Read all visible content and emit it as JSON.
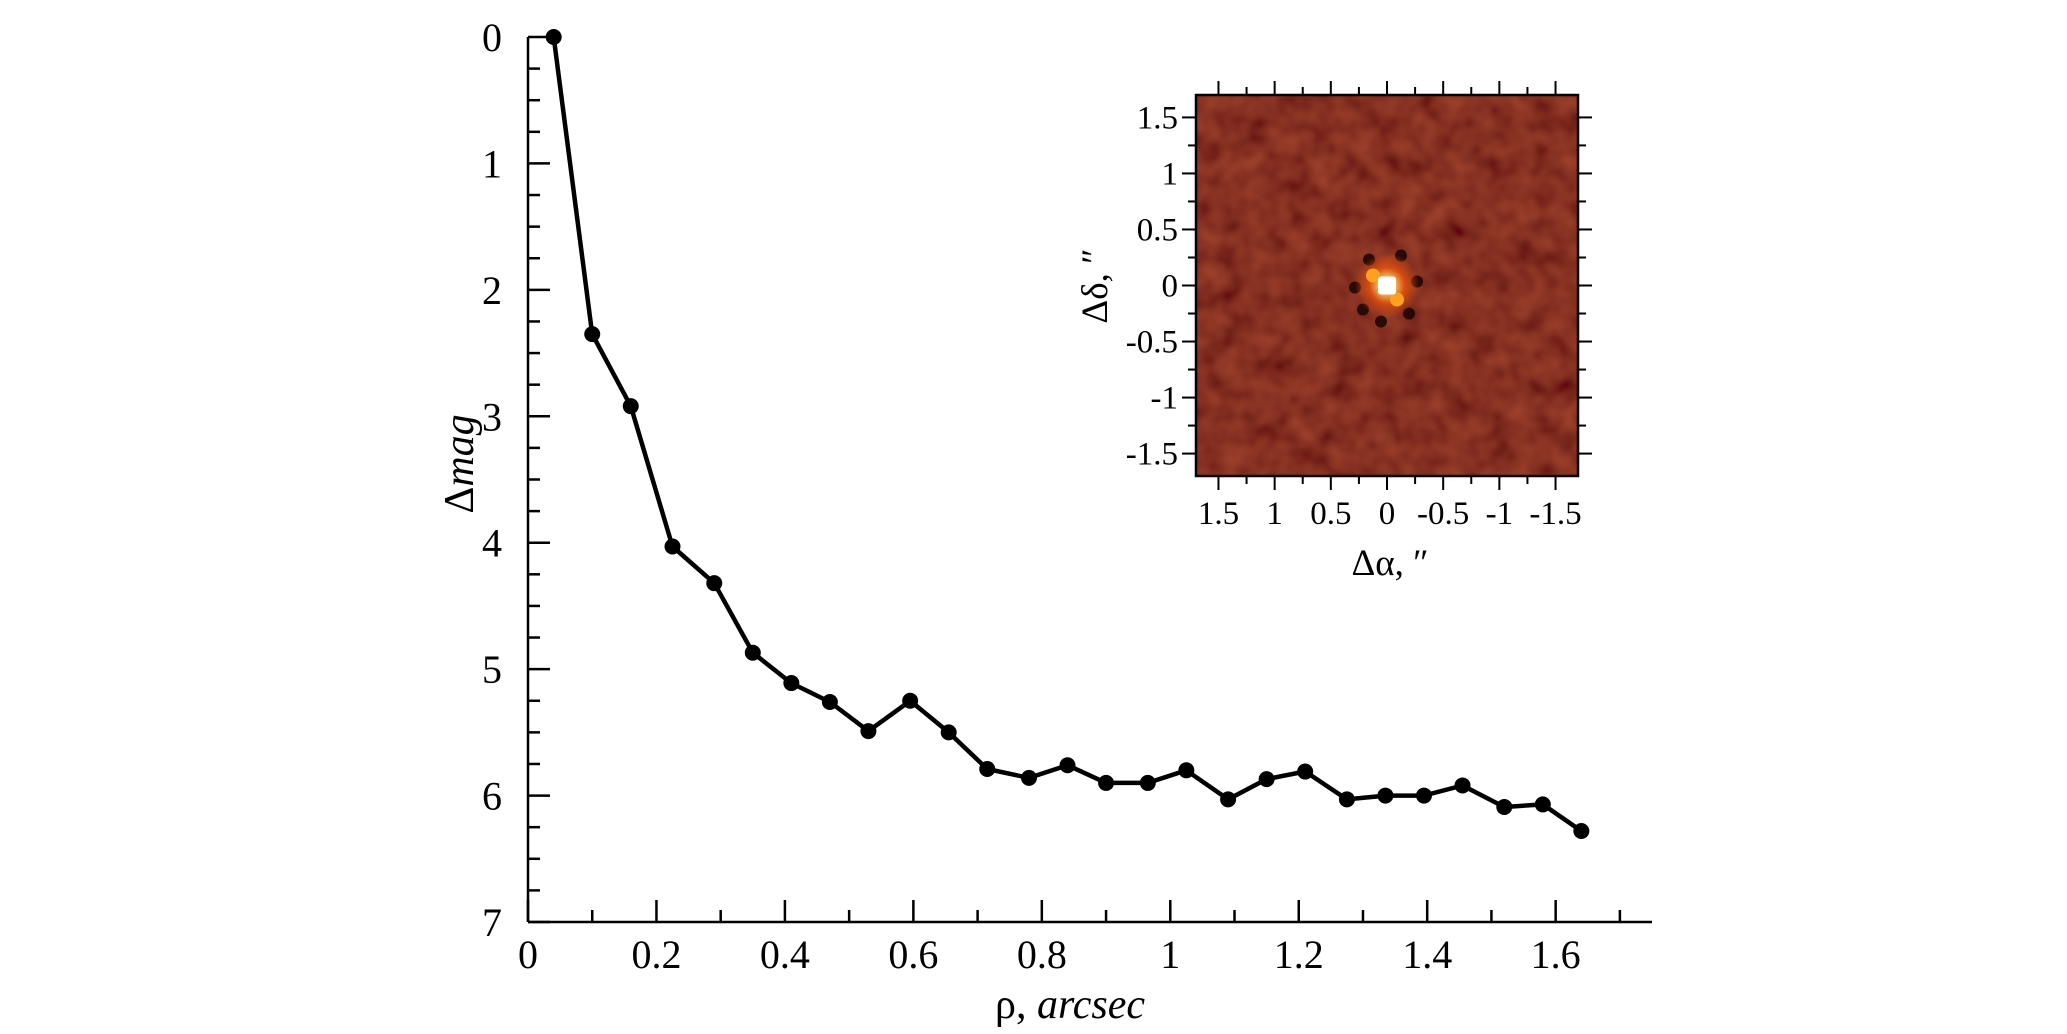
{
  "chart_data": [
    {
      "type": "line",
      "title": "",
      "xlabel": "ρ, arcsec",
      "xlabel_parts": [
        "ρ, ",
        "arcsec"
      ],
      "ylabel": "Δmag",
      "ylabel_parts": [
        "Δ",
        "mag"
      ],
      "xlim": [
        0,
        1.75
      ],
      "ylim": [
        7,
        0
      ],
      "y_inverted": true,
      "x_ticks": [
        0,
        0.2,
        0.4,
        0.6,
        0.8,
        1,
        1.2,
        1.4,
        1.6
      ],
      "x_tick_labels": [
        "0",
        "0.2",
        "0.4",
        "0.6",
        "0.8",
        "1",
        "1.2",
        "1.4",
        "1.6"
      ],
      "x_minor_step": 0.1,
      "y_ticks": [
        0,
        1,
        2,
        3,
        4,
        5,
        6,
        7
      ],
      "y_tick_labels": [
        "0",
        "1",
        "2",
        "3",
        "4",
        "5",
        "6",
        "7"
      ],
      "y_minor_step": 0.25,
      "grid": false,
      "series": [
        {
          "color": "#000000",
          "marker": "circle",
          "x": [
            0.04,
            0.1,
            0.16,
            0.225,
            0.29,
            0.35,
            0.41,
            0.47,
            0.53,
            0.595,
            0.655,
            0.715,
            0.78,
            0.84,
            0.9,
            0.965,
            1.025,
            1.09,
            1.15,
            1.21,
            1.275,
            1.335,
            1.395,
            1.455,
            1.52,
            1.58,
            1.64
          ],
          "y": [
            0.0,
            2.35,
            2.92,
            4.03,
            4.32,
            4.87,
            5.11,
            5.26,
            5.49,
            5.25,
            5.5,
            5.79,
            5.86,
            5.76,
            5.9,
            5.9,
            5.8,
            6.03,
            5.87,
            5.81,
            6.03,
            6.0,
            6.0,
            5.92,
            6.09,
            6.07,
            6.28
          ]
        }
      ]
    },
    {
      "type": "heatmap",
      "title": "",
      "xlabel": "Δα, ″",
      "ylabel": "Δδ, ″",
      "xlim": [
        1.7,
        -1.7
      ],
      "ylim": [
        -1.7,
        1.7
      ],
      "x_inverted": true,
      "x_ticks": [
        1.5,
        1,
        0.5,
        0,
        -0.5,
        -1,
        -1.5
      ],
      "x_tick_labels": [
        "1.5",
        "1",
        "0.5",
        "0",
        "-0.5",
        "-1",
        "-1.5"
      ],
      "y_ticks": [
        1.5,
        1,
        0.5,
        0,
        -0.5,
        -1,
        -1.5
      ],
      "y_tick_labels": [
        "1.5",
        "1",
        "0.5",
        "0",
        "-0.5",
        "-1",
        "-1.5"
      ],
      "minor_step": 0.25,
      "colormap": {
        "background": "#4a0b06",
        "mid": "#7a1a0c",
        "bright": "#ffa020",
        "peak": "#ffffff"
      },
      "features": [
        {
          "kind": "central-star",
          "x": 0,
          "y": 0
        }
      ]
    }
  ]
}
